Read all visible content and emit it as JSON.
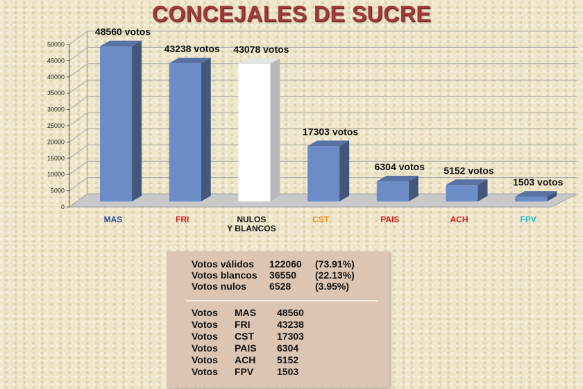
{
  "title": "CONCEJALES DE SUCRE",
  "colors": {
    "bar": "#6b8cc7",
    "blank_bar": "#ffffff",
    "title": "#a0393a"
  },
  "chart_data": {
    "type": "bar",
    "title": "CONCEJALES DE SUCRE",
    "categories": [
      "MAS",
      "FRI",
      "NULOS Y BLANCOS",
      "CST",
      "PAIS",
      "ACH",
      "FPV"
    ],
    "category_lines": [
      [
        "MAS"
      ],
      [
        "FRI"
      ],
      [
        "NULOS",
        "Y BLANCOS"
      ],
      [
        "CST"
      ],
      [
        "PAIS"
      ],
      [
        "ACH"
      ],
      [
        "FPV"
      ]
    ],
    "category_colors": [
      "#2e4c9a",
      "#d51a1a",
      "#111111",
      "#f08a12",
      "#d51a1a",
      "#d51a1a",
      "#2bc0d6"
    ],
    "values": [
      48560,
      43238,
      43078,
      17303,
      6304,
      5152,
      1503
    ],
    "value_labels": [
      "48560 votos",
      "43238 votos",
      "43078 votos",
      "17303 votos",
      "6304 votos",
      "5152 votos",
      "1503 votos"
    ],
    "bar_colors": [
      "#6b8cc7",
      "#6b8cc7",
      "#ffffff",
      "#6b8cc7",
      "#6b8cc7",
      "#6b8cc7",
      "#6b8cc7"
    ],
    "yticks": [
      0,
      5000,
      10000,
      15000,
      20000,
      25000,
      30000,
      35000,
      40000,
      45000,
      50000
    ],
    "ylim": [
      0,
      50000
    ],
    "grid": true,
    "style": "3d"
  },
  "summary": {
    "rows": [
      {
        "label": "Votos válidos",
        "value": "122060",
        "pct": "(73.91%)"
      },
      {
        "label": "Votos blancos",
        "value": "36550",
        "pct": "(22.13%)"
      },
      {
        "label": "Votos nulos",
        "value": "6528",
        "pct": "(3.95%)"
      }
    ],
    "party_rows": [
      {
        "label": "Votos",
        "party": "MAS",
        "value": "48560"
      },
      {
        "label": "Votos",
        "party": "FRI",
        "value": "43238"
      },
      {
        "label": "Votos",
        "party": "CST",
        "value": "17303"
      },
      {
        "label": "Votos",
        "party": "PAIS",
        "value": "6304"
      },
      {
        "label": "Votos",
        "party": "ACH",
        "value": "5152"
      },
      {
        "label": "Votos",
        "party": "FPV",
        "value": "1503"
      }
    ]
  }
}
